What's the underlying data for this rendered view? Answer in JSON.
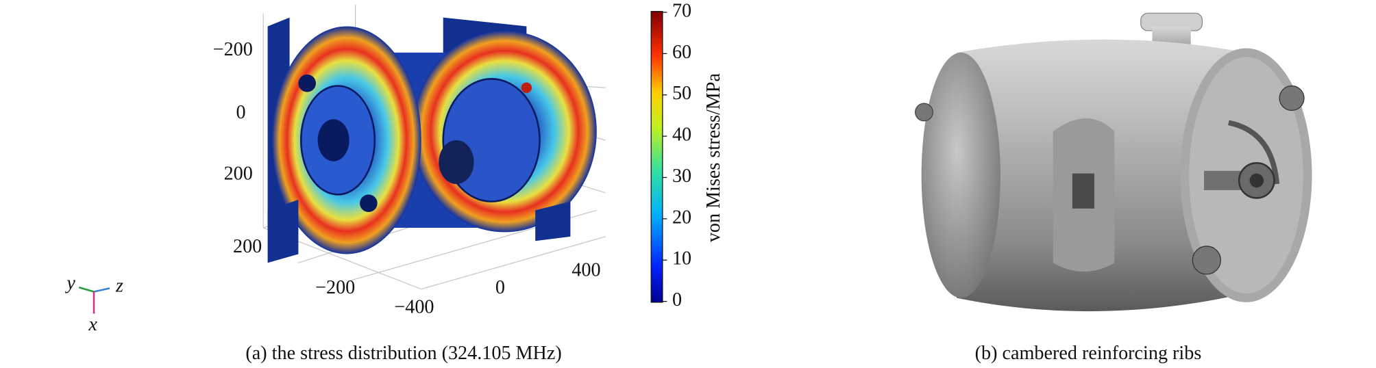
{
  "panel_a": {
    "caption": "(a) the stress distribution (324.105 MHz)",
    "colorbar": {
      "label": "von Mises stress/MPa",
      "ticks": [
        "70",
        "60",
        "50",
        "40",
        "30",
        "20",
        "10",
        "0"
      ]
    },
    "axis_vertical": [
      "−200",
      "0",
      "200"
    ],
    "axis_left": [
      "200",
      "−200",
      "−400"
    ],
    "axis_right": [
      "0",
      "400"
    ],
    "triad": {
      "y": "y",
      "z": "z",
      "x": "x"
    }
  },
  "panel_b": {
    "caption": "(b) cambered reinforcing ribs"
  }
}
